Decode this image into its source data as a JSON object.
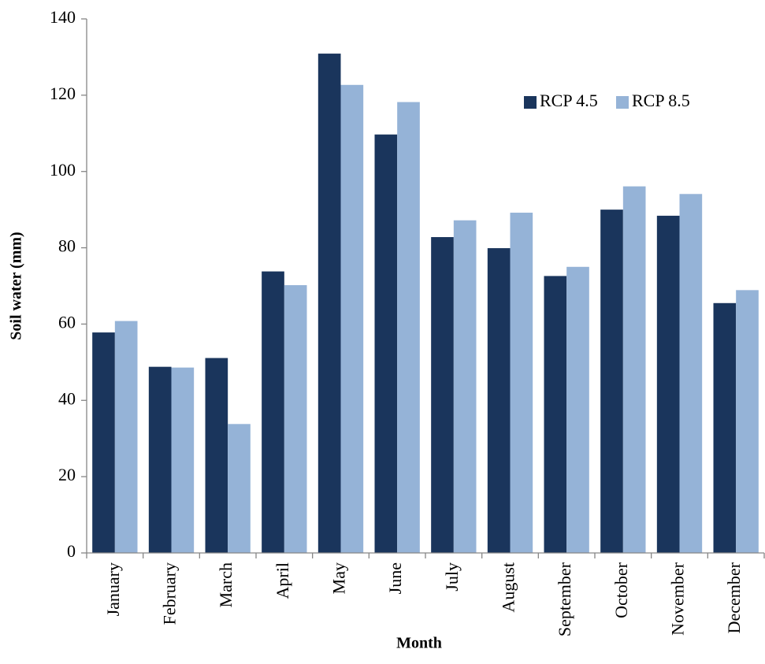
{
  "chart_data": {
    "type": "bar",
    "x_label": "Month",
    "y_label": "Soil water (mm)",
    "categories": [
      "January",
      "February",
      "March",
      "April",
      "May",
      "June",
      "July",
      "August",
      "September",
      "October",
      "November",
      "December"
    ],
    "series": [
      {
        "name": "RCP 4.5",
        "color": "#1a355c",
        "values": [
          57.8,
          48.8,
          51.1,
          73.8,
          130.9,
          109.7,
          82.8,
          79.9,
          72.6,
          90.0,
          88.4,
          65.5
        ]
      },
      {
        "name": "RCP 8.5",
        "color": "#95b3d7",
        "values": [
          60.8,
          48.6,
          33.8,
          70.2,
          122.7,
          118.2,
          87.2,
          89.2,
          75.0,
          96.1,
          94.1,
          68.9
        ]
      }
    ],
    "ylim": [
      0,
      140
    ],
    "yticks": [
      0,
      20,
      40,
      60,
      80,
      100,
      120,
      140
    ],
    "legend": "upper right"
  }
}
